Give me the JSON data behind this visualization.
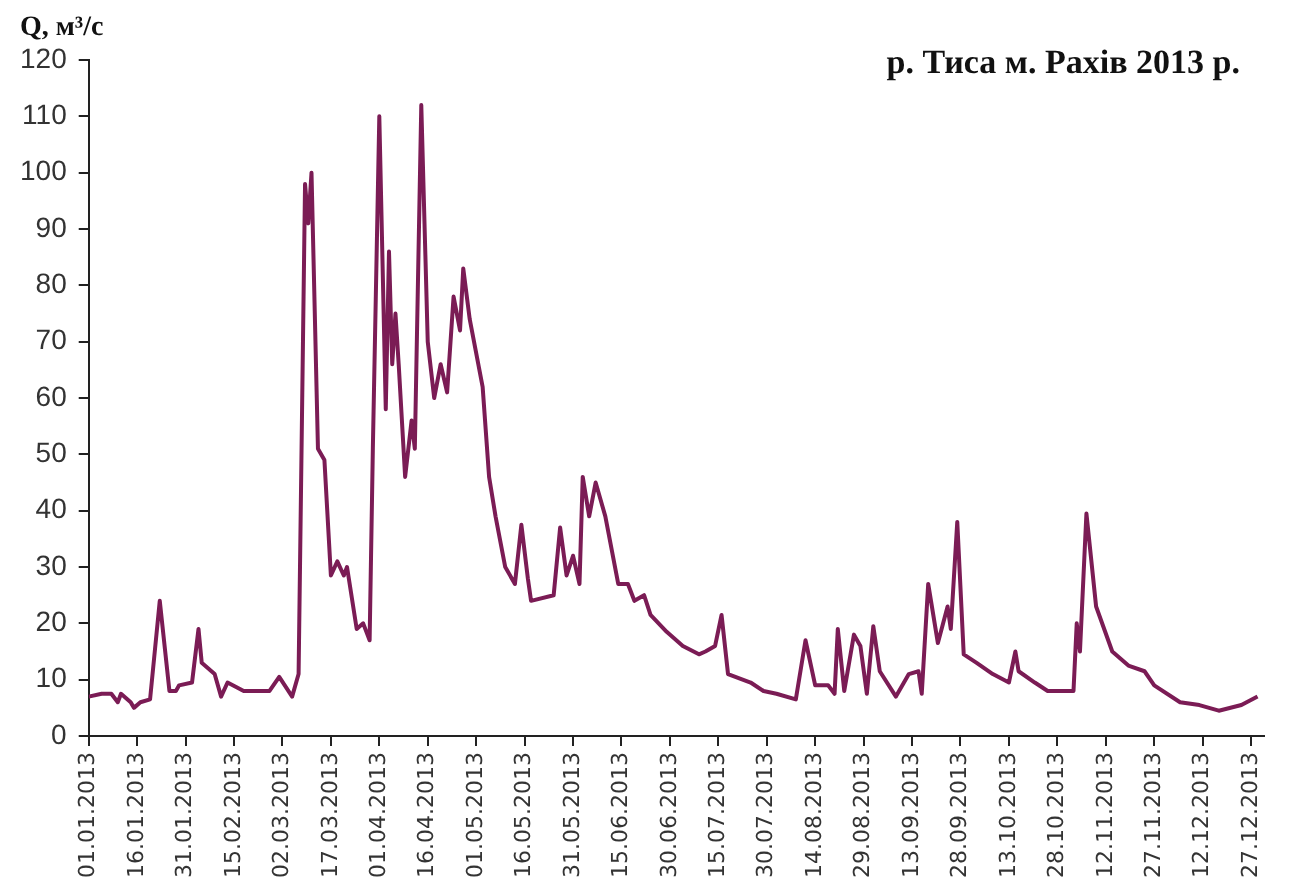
{
  "chart_data": {
    "type": "line",
    "title": "р. Тиса м. Рахів 2013 р.",
    "ylabel": "Q, м³/с",
    "x": [
      "2013-01-01",
      "2013-01-05",
      "2013-01-08",
      "2013-01-10",
      "2013-01-11",
      "2013-01-14",
      "2013-01-15",
      "2013-01-17",
      "2013-01-20",
      "2013-01-23",
      "2013-01-26",
      "2013-01-28",
      "2013-01-29",
      "2013-02-02",
      "2013-02-04",
      "2013-02-05",
      "2013-02-09",
      "2013-02-11",
      "2013-02-13",
      "2013-02-18",
      "2013-02-26",
      "2013-03-01",
      "2013-03-05",
      "2013-03-07",
      "2013-03-09",
      "2013-03-10",
      "2013-03-11",
      "2013-03-13",
      "2013-03-15",
      "2013-03-17",
      "2013-03-19",
      "2013-03-21",
      "2013-03-22",
      "2013-03-25",
      "2013-03-27",
      "2013-03-29",
      "2013-03-30",
      "2013-04-01",
      "2013-04-03",
      "2013-04-04",
      "2013-04-05",
      "2013-04-06",
      "2013-04-07",
      "2013-04-09",
      "2013-04-11",
      "2013-04-12",
      "2013-04-14",
      "2013-04-16",
      "2013-04-18",
      "2013-04-20",
      "2013-04-22",
      "2013-04-24",
      "2013-04-26",
      "2013-04-27",
      "2013-04-29",
      "2013-05-03",
      "2013-05-05",
      "2013-05-07",
      "2013-05-10",
      "2013-05-13",
      "2013-05-15",
      "2013-05-17",
      "2013-05-18",
      "2013-05-25",
      "2013-05-27",
      "2013-05-29",
      "2013-05-31",
      "2013-06-02",
      "2013-06-03",
      "2013-06-05",
      "2013-06-07",
      "2013-06-10",
      "2013-06-14",
      "2013-06-17",
      "2013-06-19",
      "2013-06-22",
      "2013-06-24",
      "2013-06-29",
      "2013-07-04",
      "2013-07-09",
      "2013-07-11",
      "2013-07-14",
      "2013-07-16",
      "2013-07-18",
      "2013-07-25",
      "2013-07-29",
      "2013-08-02",
      "2013-08-08",
      "2013-08-11",
      "2013-08-14",
      "2013-08-18",
      "2013-08-20",
      "2013-08-21",
      "2013-08-23",
      "2013-08-26",
      "2013-08-28",
      "2013-08-30",
      "2013-09-01",
      "2013-09-03",
      "2013-09-08",
      "2013-09-12",
      "2013-09-15",
      "2013-09-16",
      "2013-09-18",
      "2013-09-21",
      "2013-09-24",
      "2013-09-25",
      "2013-09-27",
      "2013-09-29",
      "2013-10-03",
      "2013-10-08",
      "2013-10-13",
      "2013-10-15",
      "2013-10-16",
      "2013-10-21",
      "2013-10-25",
      "2013-11-02",
      "2013-11-03",
      "2013-11-04",
      "2013-11-06",
      "2013-11-09",
      "2013-11-14",
      "2013-11-19",
      "2013-11-24",
      "2013-11-27",
      "2013-12-05",
      "2013-12-11",
      "2013-12-17",
      "2013-12-24",
      "2013-12-29"
    ],
    "series": [
      {
        "color": "#7b1c55",
        "values": [
          7,
          7.5,
          7.5,
          6,
          7.5,
          6,
          5,
          6,
          6.5,
          24,
          8,
          8,
          9,
          9.5,
          19,
          13,
          11,
          7,
          9.5,
          8,
          8,
          10.5,
          7,
          11,
          98,
          91,
          100,
          51,
          49,
          28.5,
          31,
          28.5,
          30,
          19,
          20,
          17,
          51,
          110,
          58,
          86,
          66,
          75,
          66,
          46,
          56,
          51,
          112,
          70,
          60,
          66,
          61,
          78,
          72,
          83,
          74,
          62,
          46,
          39,
          30,
          27,
          37.5,
          28,
          24,
          25,
          37,
          28.5,
          32,
          27,
          46,
          39,
          45,
          39,
          27,
          27,
          24,
          25,
          21.5,
          18.5,
          16,
          14.5,
          15,
          16,
          21.5,
          11,
          9.5,
          8,
          7.5,
          6.5,
          17,
          9,
          9,
          7.5,
          19,
          8,
          18,
          16,
          7.5,
          19.5,
          11.5,
          7,
          11,
          11.5,
          7.5,
          27,
          16.5,
          23,
          19,
          38,
          14.5,
          13,
          11,
          9.5,
          15,
          11.5,
          9.5,
          8,
          8,
          20,
          15,
          39.5,
          23,
          15,
          12.5,
          11.5,
          9,
          6,
          5.5,
          4.5,
          5.5,
          7
        ]
      }
    ],
    "xlim": [
      "2013-01-01",
      "2013-12-31"
    ],
    "xticks": [
      {
        "value": "2013-01-01",
        "label": "01.01.2013"
      },
      {
        "value": "2013-01-16",
        "label": "16.01.2013"
      },
      {
        "value": "2013-01-31",
        "label": "31.01.2013"
      },
      {
        "value": "2013-02-15",
        "label": "15.02.2013"
      },
      {
        "value": "2013-03-02",
        "label": "02.03.2013"
      },
      {
        "value": "2013-03-17",
        "label": "17.03.2013"
      },
      {
        "value": "2013-04-01",
        "label": "01.04.2013"
      },
      {
        "value": "2013-04-16",
        "label": "16.04.2013"
      },
      {
        "value": "2013-05-01",
        "label": "01.05.2013"
      },
      {
        "value": "2013-05-16",
        "label": "16.05.2013"
      },
      {
        "value": "2013-05-31",
        "label": "31.05.2013"
      },
      {
        "value": "2013-06-15",
        "label": "15.06.2013"
      },
      {
        "value": "2013-06-30",
        "label": "30.06.2013"
      },
      {
        "value": "2013-07-15",
        "label": "15.07.2013"
      },
      {
        "value": "2013-07-30",
        "label": "30.07.2013"
      },
      {
        "value": "2013-08-14",
        "label": "14.08.2013"
      },
      {
        "value": "2013-08-29",
        "label": "29.08.2013"
      },
      {
        "value": "2013-09-13",
        "label": "13.09.2013"
      },
      {
        "value": "2013-09-28",
        "label": "28.09.2013"
      },
      {
        "value": "2013-10-13",
        "label": "13.10.2013"
      },
      {
        "value": "2013-10-28",
        "label": "28.10.2013"
      },
      {
        "value": "2013-11-12",
        "label": "12.11.2013"
      },
      {
        "value": "2013-11-27",
        "label": "27.11.2013"
      },
      {
        "value": "2013-12-12",
        "label": "12.12.2013"
      },
      {
        "value": "2013-12-27",
        "label": "27.12.2013"
      }
    ],
    "ylim": [
      0,
      120
    ],
    "yticks": [
      0,
      10,
      20,
      30,
      40,
      50,
      60,
      70,
      80,
      90,
      100,
      110,
      120
    ],
    "grid": false,
    "legend": false,
    "marker": "none",
    "line_style": "solid"
  }
}
